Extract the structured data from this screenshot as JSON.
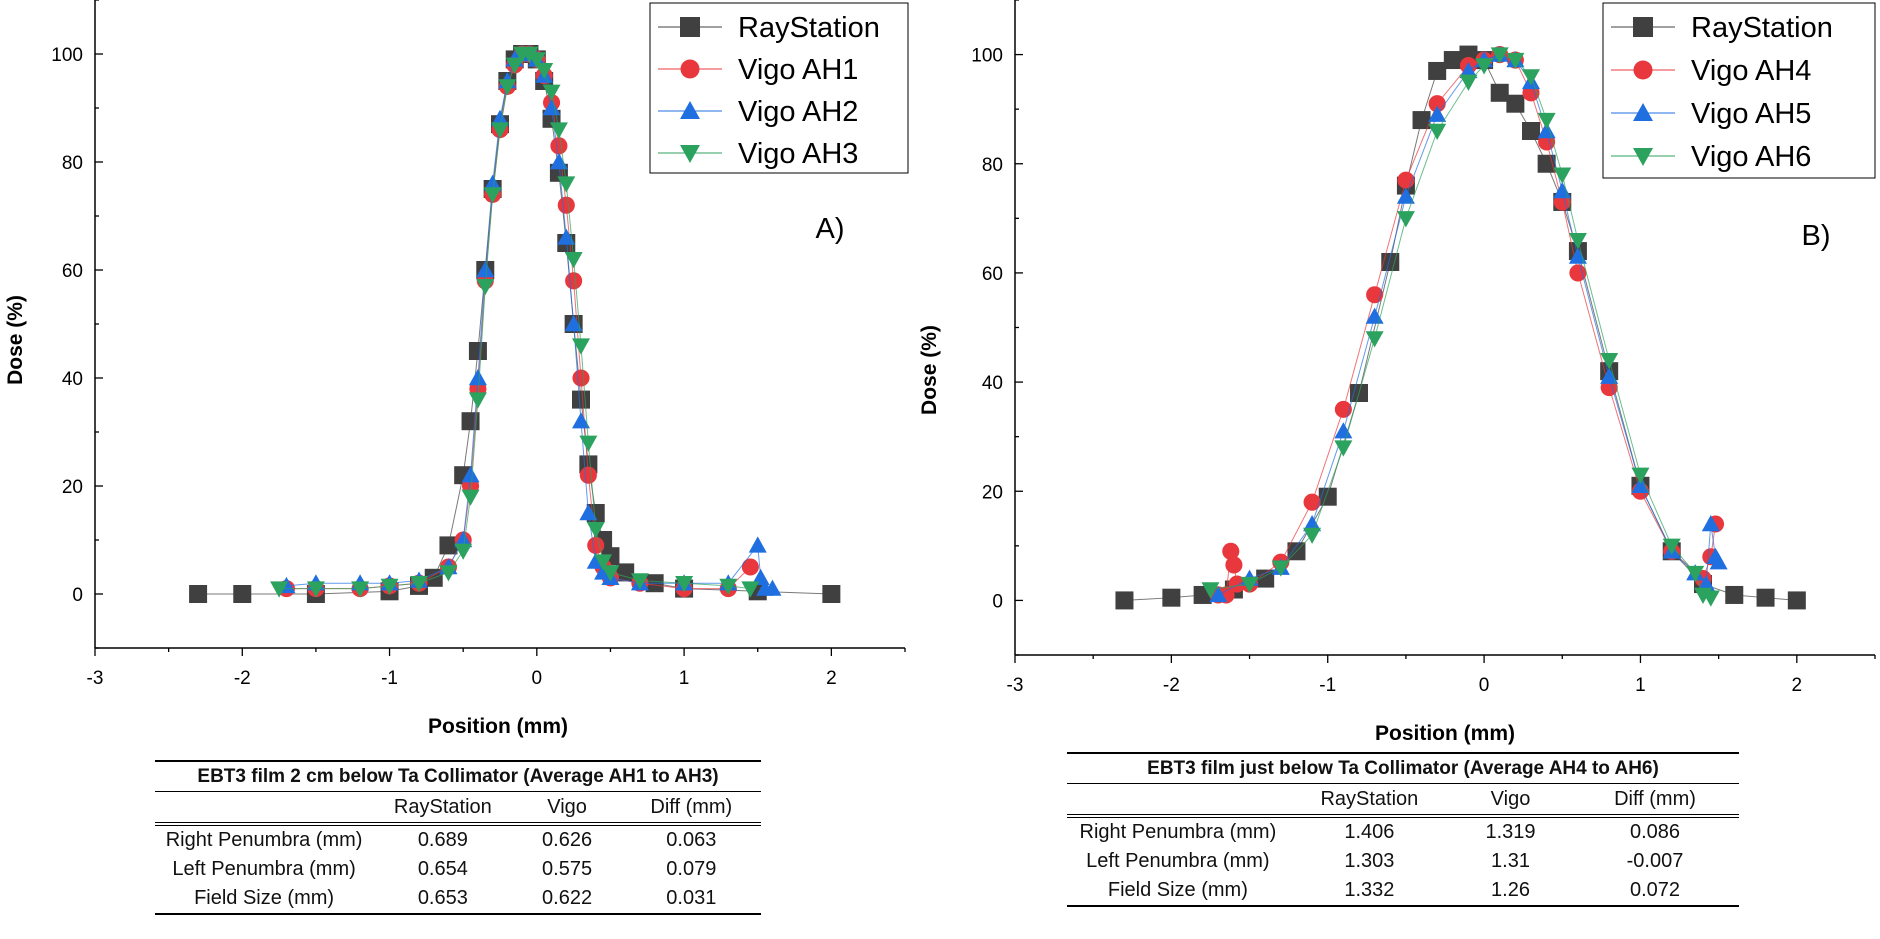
{
  "chart_data": [
    {
      "type": "scatter",
      "panel_label": "A)",
      "xlabel": "Position (mm)",
      "ylabel": "Dose (%)",
      "xlim": [
        -3,
        2.5
      ],
      "ylim": [
        -10,
        110
      ],
      "xticks": [
        -3,
        -2,
        -1,
        0,
        1,
        2
      ],
      "yticks": [
        0,
        20,
        40,
        60,
        80,
        100
      ],
      "legend_position": "top-right",
      "series": [
        {
          "name": "RayStation",
          "color": "#404040",
          "marker": "square",
          "x": [
            -2.3,
            -2.0,
            -1.5,
            -1.0,
            -0.8,
            -0.7,
            -0.6,
            -0.5,
            -0.45,
            -0.4,
            -0.35,
            -0.3,
            -0.25,
            -0.2,
            -0.15,
            -0.1,
            -0.05,
            0.0,
            0.05,
            0.1,
            0.15,
            0.2,
            0.25,
            0.3,
            0.35,
            0.4,
            0.45,
            0.5,
            0.6,
            0.8,
            1.0,
            1.5,
            2.0
          ],
          "y": [
            0,
            0,
            0,
            0.5,
            1.5,
            3,
            9,
            22,
            32,
            45,
            60,
            75,
            87,
            95,
            99,
            100,
            100,
            99,
            95,
            88,
            78,
            65,
            50,
            36,
            24,
            15,
            10,
            7,
            4,
            2,
            1,
            0.5,
            0
          ]
        },
        {
          "name": "Vigo AH1",
          "color": "#e8383d",
          "marker": "circle",
          "x": [
            -1.7,
            -1.5,
            -1.2,
            -1.0,
            -0.8,
            -0.6,
            -0.5,
            -0.45,
            -0.4,
            -0.35,
            -0.3,
            -0.25,
            -0.2,
            -0.15,
            -0.1,
            -0.05,
            0.0,
            0.05,
            0.1,
            0.15,
            0.2,
            0.25,
            0.3,
            0.35,
            0.4,
            0.45,
            0.5,
            0.7,
            1.0,
            1.3,
            1.45
          ],
          "y": [
            1,
            1,
            1,
            1.5,
            2,
            5,
            10,
            20,
            38,
            58,
            74,
            86,
            94,
            98,
            100,
            100,
            99,
            96,
            91,
            83,
            72,
            58,
            40,
            22,
            9,
            5,
            3,
            2,
            1,
            1,
            5
          ]
        },
        {
          "name": "Vigo AH2",
          "color": "#1f6fe0",
          "marker": "triangle-up",
          "x": [
            -1.7,
            -1.5,
            -1.2,
            -1.0,
            -0.8,
            -0.6,
            -0.5,
            -0.45,
            -0.4,
            -0.35,
            -0.3,
            -0.25,
            -0.2,
            -0.15,
            -0.1,
            -0.05,
            0.0,
            0.05,
            0.1,
            0.15,
            0.2,
            0.25,
            0.3,
            0.35,
            0.4,
            0.45,
            0.5,
            0.7,
            1.0,
            1.3,
            1.5,
            1.52,
            1.55,
            1.6
          ],
          "y": [
            1.5,
            2,
            2,
            2,
            2.5,
            5,
            10,
            22,
            40,
            60,
            76,
            88,
            95,
            99,
            100,
            100,
            99,
            96,
            90,
            80,
            66,
            50,
            32,
            15,
            6,
            4,
            3,
            2,
            2,
            2,
            9,
            3,
            1,
            1
          ]
        },
        {
          "name": "Vigo AH3",
          "color": "#2ca25f",
          "marker": "triangle-down",
          "x": [
            -1.75,
            -1.5,
            -1.2,
            -1.0,
            -0.8,
            -0.6,
            -0.5,
            -0.45,
            -0.4,
            -0.35,
            -0.3,
            -0.25,
            -0.2,
            -0.15,
            -0.1,
            -0.05,
            0.0,
            0.05,
            0.1,
            0.15,
            0.2,
            0.25,
            0.3,
            0.35,
            0.4,
            0.45,
            0.5,
            0.7,
            1.0,
            1.3,
            1.45
          ],
          "y": [
            1,
            1,
            1,
            1.5,
            2,
            4,
            8,
            18,
            36,
            57,
            74,
            86,
            94,
            98,
            100,
            100,
            99,
            97,
            93,
            86,
            76,
            62,
            46,
            28,
            12,
            6,
            4,
            2.5,
            2,
            1.5,
            1
          ]
        }
      ]
    },
    {
      "type": "scatter",
      "panel_label": "B)",
      "xlabel": "Position (mm)",
      "ylabel": "Dose (%)",
      "xlim": [
        -3,
        2.5
      ],
      "ylim": [
        -10,
        110
      ],
      "xticks": [
        -3,
        -2,
        -1,
        0,
        1,
        2
      ],
      "yticks": [
        0,
        20,
        40,
        60,
        80,
        100
      ],
      "legend_position": "top-right",
      "series": [
        {
          "name": "RayStation",
          "color": "#404040",
          "marker": "square",
          "x": [
            -2.3,
            -2.0,
            -1.8,
            -1.6,
            -1.4,
            -1.2,
            -1.0,
            -0.8,
            -0.6,
            -0.5,
            -0.4,
            -0.3,
            -0.2,
            -0.1,
            0.0,
            0.1,
            0.2,
            0.3,
            0.4,
            0.5,
            0.6,
            0.8,
            1.0,
            1.2,
            1.4,
            1.6,
            1.8,
            2.0
          ],
          "y": [
            0,
            0.5,
            1,
            2,
            4,
            9,
            19,
            38,
            62,
            76,
            88,
            97,
            99,
            100,
            99,
            93,
            91,
            86,
            80,
            73,
            64,
            42,
            21,
            9,
            3,
            1,
            0.5,
            0
          ]
        },
        {
          "name": "Vigo AH4",
          "color": "#e8383d",
          "marker": "circle",
          "x": [
            -1.7,
            -1.65,
            -1.62,
            -1.6,
            -1.58,
            -1.5,
            -1.3,
            -1.1,
            -0.9,
            -0.7,
            -0.5,
            -0.3,
            -0.1,
            0.0,
            0.1,
            0.2,
            0.3,
            0.4,
            0.5,
            0.6,
            0.8,
            1.0,
            1.2,
            1.4,
            1.45,
            1.48
          ],
          "y": [
            1,
            1,
            9,
            6.5,
            3,
            3,
            7,
            18,
            35,
            56,
            77,
            91,
            98,
            99,
            100,
            99,
            93,
            84,
            73,
            60,
            39,
            20,
            9,
            4,
            8,
            14
          ]
        },
        {
          "name": "Vigo AH5",
          "color": "#1f6fe0",
          "marker": "triangle-up",
          "x": [
            -1.7,
            -1.5,
            -1.3,
            -1.1,
            -0.9,
            -0.7,
            -0.5,
            -0.3,
            -0.1,
            0.0,
            0.1,
            0.2,
            0.3,
            0.4,
            0.5,
            0.6,
            0.8,
            1.0,
            1.2,
            1.35,
            1.42,
            1.45,
            1.48,
            1.5
          ],
          "y": [
            1,
            4,
            6,
            14,
            31,
            52,
            74,
            89,
            97,
            99,
            100,
            99,
            95,
            86,
            75,
            63,
            41,
            21,
            9,
            5,
            3,
            14,
            8,
            7
          ]
        },
        {
          "name": "Vigo AH6",
          "color": "#2ca25f",
          "marker": "triangle-down",
          "x": [
            -1.75,
            -1.5,
            -1.3,
            -1.1,
            -0.9,
            -0.7,
            -0.5,
            -0.3,
            -0.1,
            0.0,
            0.1,
            0.2,
            0.3,
            0.4,
            0.5,
            0.6,
            0.8,
            1.0,
            1.2,
            1.35,
            1.4,
            1.45
          ],
          "y": [
            2,
            3,
            6,
            12,
            28,
            48,
            70,
            86,
            95,
            98,
            100,
            99,
            96,
            88,
            78,
            66,
            44,
            23,
            10,
            5,
            1,
            0.5
          ]
        }
      ]
    }
  ],
  "tables": [
    {
      "caption": "EBT3 film 2 cm below Ta Collimator (Average AH1 to AH3)",
      "columns": [
        "",
        "RayStation",
        "Vigo",
        "Diff (mm)"
      ],
      "rows": [
        [
          "Right Penumbra (mm)",
          "0.689",
          "0.626",
          "0.063"
        ],
        [
          "Left Penumbra (mm)",
          "0.654",
          "0.575",
          "0.079"
        ],
        [
          "Field Size (mm)",
          "0.653",
          "0.622",
          "0.031"
        ]
      ]
    },
    {
      "caption": "EBT3 film just below Ta Collimator (Average AH4 to AH6)",
      "columns": [
        "",
        "RayStation",
        "Vigo",
        "Diff (mm)"
      ],
      "rows": [
        [
          "Right Penumbra (mm)",
          "1.406",
          "1.319",
          "0.086"
        ],
        [
          "Left Penumbra (mm)",
          "1.303",
          "1.31",
          "-0.007"
        ],
        [
          "Field Size (mm)",
          "1.332",
          "1.26",
          "0.072"
        ]
      ]
    }
  ]
}
